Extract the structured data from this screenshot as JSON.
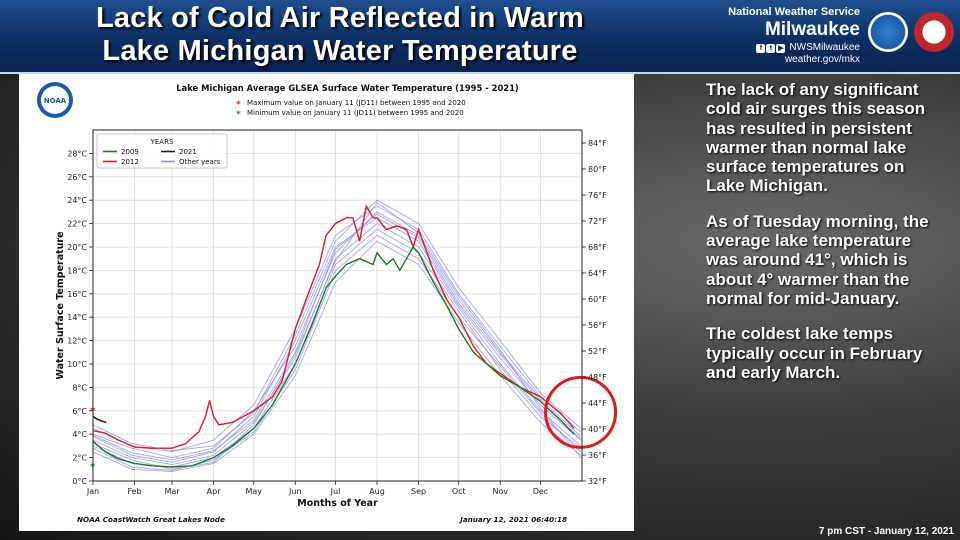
{
  "banner": {
    "title_line1": "Lack of Cold Air Reflected in Warm",
    "title_line2": "Lake Michigan Water Temperature",
    "org": "National Weather Service",
    "office": "Milwaukee",
    "social": "NWSMilwaukee",
    "website": "weather.gov/mkx",
    "logo_noaa_text": "NOAA",
    "logo_nws_text": "NATIONAL WEATHER SERVICE"
  },
  "chart_panel": {
    "logo_text": "NOAA",
    "footer_left": "NOAA CoastWatch Great Lakes Node",
    "footer_right": "January 12, 2021 06:40:18"
  },
  "chart_data": {
    "type": "line",
    "title": "Lake Michigan Average GLSEA Surface Water Temperature (1995 - 2021)",
    "annotations": [
      {
        "marker": "*",
        "color": "#e02020",
        "text": "Maximum value on January 11 (JD11) between 1995 and 2020"
      },
      {
        "marker": "*",
        "color": "#2e8b2e",
        "text": "Minimum  value on January 11 (JD11) between 1995 and 2020"
      }
    ],
    "xlabel": "Months of Year",
    "ylabel": "Water Surface Temperature",
    "x_ticks": [
      "Jan",
      "Feb",
      "Mar",
      "Apr",
      "May",
      "Jun",
      "Jul",
      "Aug",
      "Sep",
      "Oct",
      "Nov",
      "Dec"
    ],
    "x_tick_days": [
      1,
      32,
      60,
      91,
      121,
      152,
      182,
      213,
      244,
      274,
      305,
      335
    ],
    "xlim": [
      1,
      366
    ],
    "ylim": [
      0,
      30
    ],
    "y_ticks": [
      "0°C",
      "2°C",
      "4°C",
      "6°C",
      "8°C",
      "10°C",
      "12°C",
      "14°C",
      "16°C",
      "18°C",
      "20°C",
      "22°C",
      "24°C",
      "26°C",
      "28°C"
    ],
    "y_tick_values": [
      0,
      2,
      4,
      6,
      8,
      10,
      12,
      14,
      16,
      18,
      20,
      22,
      24,
      26,
      28
    ],
    "y2_ticks": [
      "32°F",
      "36°F",
      "40°F",
      "44°F",
      "48°F",
      "52°F",
      "56°F",
      "60°F",
      "64°F",
      "68°F",
      "72°F",
      "76°F",
      "80°F",
      "84°F"
    ],
    "y2_tick_values_f": [
      32,
      36,
      40,
      44,
      48,
      52,
      56,
      60,
      64,
      68,
      72,
      76,
      80,
      84
    ],
    "legend": {
      "title": "YEARS",
      "placement": "upper-left",
      "entries": [
        {
          "label": "2009",
          "color": "#1e7a1e"
        },
        {
          "label": "2021",
          "color": "#222222"
        },
        {
          "label": "2012",
          "color": "#e01b1b"
        },
        {
          "label": "Other years",
          "color": "#8888e6"
        }
      ]
    },
    "series": [
      {
        "name": "2012",
        "color": "#e01b1b",
        "width": 1.4,
        "x": [
          1,
          10,
          20,
          32,
          45,
          60,
          70,
          80,
          85,
          88,
          91,
          95,
          105,
          121,
          135,
          142,
          152,
          160,
          170,
          175,
          182,
          190,
          195,
          200,
          205,
          210,
          213,
          220,
          228,
          235,
          240,
          244,
          255,
          265,
          274,
          285,
          295,
          305,
          320,
          335,
          350,
          360
        ],
        "y": [
          4.3,
          4.1,
          3.5,
          2.9,
          2.8,
          2.8,
          3.2,
          4.2,
          5.5,
          6.9,
          5.5,
          4.8,
          5.0,
          6.0,
          7.2,
          8.5,
          13.0,
          15.5,
          18.5,
          21.0,
          22.0,
          22.5,
          22.5,
          20.5,
          23.5,
          22.5,
          22.5,
          21.5,
          21.8,
          21.5,
          20.0,
          21.5,
          18.0,
          15.5,
          14.0,
          11.5,
          10.0,
          9.2,
          8.0,
          7.2,
          5.8,
          4.5
        ]
      },
      {
        "name": "2009",
        "color": "#1e7a1e",
        "width": 1.4,
        "x": [
          1,
          10,
          20,
          32,
          45,
          60,
          75,
          91,
          105,
          121,
          135,
          152,
          165,
          175,
          182,
          190,
          200,
          210,
          213,
          220,
          225,
          230,
          240,
          244,
          255,
          265,
          274,
          285,
          295,
          305,
          320,
          335,
          350,
          360
        ],
        "y": [
          3.4,
          2.5,
          1.9,
          1.5,
          1.3,
          1.2,
          1.3,
          2.0,
          3.0,
          4.5,
          6.5,
          10.0,
          13.5,
          16.5,
          17.5,
          18.5,
          19.0,
          18.5,
          19.5,
          18.5,
          19.0,
          18.0,
          20.0,
          19.5,
          17.0,
          15.0,
          13.0,
          11.0,
          10.0,
          9.0,
          8.0,
          6.8,
          5.2,
          4.0
        ]
      },
      {
        "name": "2021",
        "color": "#222222",
        "width": 1.6,
        "x": [
          1,
          4,
          8,
          11
        ],
        "y": [
          5.5,
          5.3,
          5.1,
          5.0
        ]
      }
    ],
    "other_years": [
      {
        "x": [
          1,
          30,
          60,
          91,
          121,
          152,
          182,
          213,
          244,
          274,
          305,
          335,
          365
        ],
        "y": [
          3.8,
          2.2,
          1.6,
          2.5,
          5.5,
          12.0,
          20.0,
          22.5,
          20.5,
          15.0,
          10.5,
          6.5,
          3.5
        ]
      },
      {
        "x": [
          1,
          30,
          60,
          91,
          121,
          152,
          182,
          213,
          244,
          274,
          305,
          335,
          365
        ],
        "y": [
          3.0,
          1.5,
          1.2,
          2.0,
          4.5,
          10.0,
          18.5,
          21.5,
          19.5,
          14.5,
          9.5,
          5.5,
          2.8
        ]
      },
      {
        "x": [
          1,
          30,
          60,
          91,
          121,
          152,
          182,
          213,
          244,
          274,
          305,
          335,
          365
        ],
        "y": [
          4.5,
          3.0,
          2.5,
          3.5,
          6.5,
          13.0,
          21.0,
          23.5,
          21.5,
          16.0,
          11.5,
          7.2,
          4.2
        ]
      },
      {
        "x": [
          1,
          30,
          60,
          91,
          121,
          152,
          182,
          213,
          244,
          274,
          305,
          335,
          365
        ],
        "y": [
          2.5,
          1.0,
          0.8,
          1.5,
          4.0,
          9.0,
          17.0,
          20.5,
          18.5,
          13.5,
          9.0,
          5.0,
          2.2
        ]
      },
      {
        "x": [
          1,
          30,
          60,
          91,
          121,
          152,
          182,
          213,
          244,
          274,
          305,
          335,
          365
        ],
        "y": [
          4.0,
          2.8,
          2.0,
          2.8,
          6.0,
          11.5,
          19.5,
          23.0,
          21.0,
          15.5,
          11.0,
          7.0,
          3.8
        ]
      },
      {
        "x": [
          1,
          30,
          60,
          91,
          121,
          152,
          182,
          213,
          244,
          274,
          305,
          335,
          365
        ],
        "y": [
          3.5,
          2.0,
          1.4,
          2.2,
          5.0,
          10.5,
          19.0,
          22.0,
          20.0,
          14.8,
          10.0,
          6.0,
          3.0
        ]
      },
      {
        "x": [
          1,
          30,
          60,
          91,
          121,
          152,
          182,
          213,
          244,
          274,
          305,
          335,
          365
        ],
        "y": [
          4.8,
          3.2,
          2.6,
          3.0,
          5.8,
          12.5,
          20.5,
          24.0,
          22.0,
          16.5,
          12.0,
          7.5,
          4.5
        ]
      },
      {
        "x": [
          1,
          30,
          60,
          91,
          121,
          152,
          182,
          213,
          244,
          274,
          305,
          335,
          365
        ],
        "y": [
          2.8,
          1.2,
          0.9,
          1.8,
          4.2,
          9.5,
          18.0,
          21.0,
          19.0,
          14.0,
          9.8,
          5.8,
          2.5
        ]
      },
      {
        "x": [
          1,
          30,
          60,
          91,
          121,
          152,
          182,
          213,
          244,
          274,
          305,
          335,
          365
        ],
        "y": [
          3.9,
          2.4,
          1.8,
          2.6,
          5.2,
          11.0,
          19.8,
          22.8,
          20.8,
          15.2,
          10.8,
          6.8,
          3.6
        ]
      },
      {
        "x": [
          1,
          30,
          60,
          91,
          121,
          152,
          182,
          213,
          244,
          274,
          305,
          335,
          365
        ],
        "y": [
          3.2,
          1.8,
          1.0,
          1.6,
          4.8,
          10.8,
          18.8,
          23.8,
          21.2,
          15.8,
          11.2,
          6.2,
          2.0
        ]
      }
    ],
    "markers": [
      {
        "x": 1,
        "y": 6.0,
        "color": "#e02020",
        "label": "max"
      },
      {
        "x": 1,
        "y": 1.2,
        "color": "#2e8b2e",
        "label": "min"
      }
    ],
    "highlight_circle": {
      "x": 350,
      "y": 4.5,
      "color": "#e01b1b"
    },
    "grid": true
  },
  "side_text": {
    "p1": "The lack of any significant cold air surges this season has resulted in persistent warmer than normal lake surface temperatures on Lake Michigan.",
    "p2": "As of Tuesday morning, the average lake temperature was around 41°, which is about 4° warmer than the normal for mid-January.",
    "p3": "The coldest lake temps typically occur in February and early March."
  },
  "footer": {
    "date": "7 pm CST - January 12, 2021"
  }
}
